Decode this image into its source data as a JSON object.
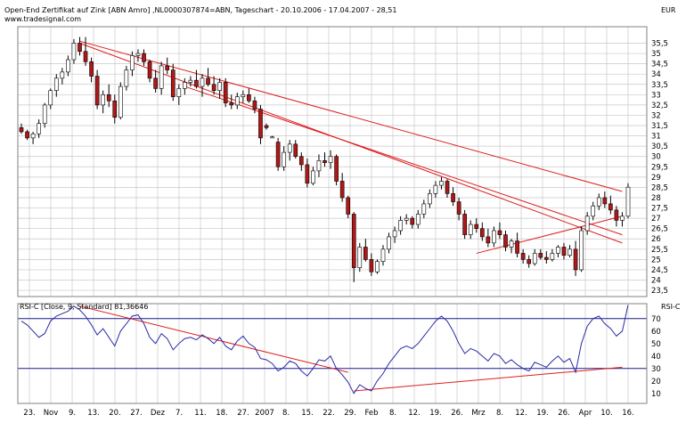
{
  "header": {
    "title": "Open-End Zertifikat auf Zink [ABN Amro] ,NL0000307874=ABN, Tageschart - 20.10.2006 - 17.04.2007 - 28,51",
    "source": "www.tradesignal.com",
    "currency": "EUR"
  },
  "colors": {
    "up": "#ffffff",
    "down": "#b01818",
    "trendline": "#dd1f1f",
    "rsi": "#2a2aa8",
    "rsi_ref": "#1a1a8c",
    "grid": "#c8c8c8"
  },
  "chart_data": [
    {
      "type": "candlestick",
      "title": "Open-End Zertifikat auf Zink [ABN Amro] ,NL0000307874=ABN, Tageschart - 20.10.2006 - 17.04.2007 - 28,51",
      "ylabel": "EUR",
      "ylim": [
        23.2,
        36.3
      ],
      "y_ticks": [
        "23,5",
        "24",
        "24,5",
        "25",
        "25,5",
        "26",
        "26,5",
        "27",
        "27,5",
        "28",
        "28,5",
        "29",
        "29,5",
        "30",
        "30,5",
        "31",
        "31,5",
        "32",
        "32,5",
        "33",
        "33,5",
        "34",
        "34,5",
        "35",
        "35,5"
      ],
      "x_tick_labels": [
        "23.",
        "Nov",
        "9.",
        "13.",
        "20.",
        "27.",
        "Dez",
        "7.",
        "11.",
        "18.",
        "27.",
        "2007",
        "8.",
        "15.",
        "22.",
        "29.",
        "Feb",
        "8.",
        "12.",
        "19.",
        "26.",
        "Mrz",
        "8.",
        "12.",
        "19.",
        "26.",
        "Apr",
        "10.",
        "16."
      ],
      "grid": true,
      "ohlc": [
        [
          31.4,
          31.6,
          31.1,
          31.2
        ],
        [
          31.2,
          31.3,
          30.8,
          30.9
        ],
        [
          30.9,
          31.2,
          30.6,
          31.1
        ],
        [
          31.1,
          31.8,
          30.9,
          31.6
        ],
        [
          31.6,
          32.6,
          31.4,
          32.5
        ],
        [
          32.5,
          33.3,
          32.3,
          33.2
        ],
        [
          33.2,
          34.0,
          32.9,
          33.8
        ],
        [
          33.8,
          34.3,
          33.5,
          34.1
        ],
        [
          34.1,
          34.9,
          33.9,
          34.7
        ],
        [
          34.7,
          35.7,
          34.5,
          35.5
        ],
        [
          35.5,
          35.8,
          34.9,
          35.1
        ],
        [
          35.1,
          35.8,
          34.4,
          34.6
        ],
        [
          34.6,
          34.8,
          33.6,
          33.9
        ],
        [
          33.9,
          34.2,
          32.3,
          32.5
        ],
        [
          32.5,
          33.2,
          32.1,
          33.0
        ],
        [
          33.0,
          33.5,
          32.4,
          32.7
        ],
        [
          32.7,
          33.0,
          31.6,
          31.9
        ],
        [
          31.9,
          33.6,
          31.8,
          33.4
        ],
        [
          33.4,
          34.4,
          33.2,
          34.2
        ],
        [
          34.2,
          35.1,
          33.9,
          34.9
        ],
        [
          34.9,
          35.2,
          34.6,
          35.0
        ],
        [
          35.0,
          35.2,
          34.4,
          34.6
        ],
        [
          34.6,
          34.7,
          33.6,
          33.8
        ],
        [
          33.8,
          34.2,
          33.1,
          33.3
        ],
        [
          33.3,
          34.6,
          33.0,
          34.4
        ],
        [
          34.4,
          34.8,
          34.0,
          34.2
        ],
        [
          34.2,
          34.5,
          32.7,
          32.9
        ],
        [
          32.9,
          33.5,
          32.5,
          33.3
        ],
        [
          33.3,
          33.8,
          33.0,
          33.6
        ],
        [
          33.6,
          33.9,
          33.4,
          33.7
        ],
        [
          33.7,
          34.2,
          33.3,
          33.4
        ],
        [
          33.4,
          34.0,
          32.9,
          33.8
        ],
        [
          33.8,
          34.3,
          33.4,
          33.5
        ],
        [
          33.5,
          33.9,
          33.0,
          33.2
        ],
        [
          33.2,
          33.8,
          32.8,
          33.6
        ],
        [
          33.6,
          33.8,
          32.4,
          32.6
        ],
        [
          32.6,
          33.0,
          32.3,
          32.5
        ],
        [
          32.5,
          33.1,
          32.3,
          32.9
        ],
        [
          32.9,
          33.2,
          32.6,
          33.0
        ],
        [
          33.0,
          33.3,
          32.6,
          32.7
        ],
        [
          32.7,
          32.9,
          32.1,
          32.3
        ],
        [
          32.3,
          32.5,
          30.6,
          30.9
        ],
        [
          31.5,
          31.6,
          31.3,
          31.4
        ],
        [
          30.9,
          31.0,
          30.9,
          30.95
        ],
        [
          30.7,
          30.9,
          29.3,
          29.5
        ],
        [
          29.5,
          30.5,
          29.3,
          30.2
        ],
        [
          30.2,
          30.8,
          29.8,
          30.6
        ],
        [
          30.6,
          30.8,
          29.9,
          30.0
        ],
        [
          30.0,
          30.2,
          29.3,
          29.6
        ],
        [
          29.6,
          29.9,
          28.5,
          28.7
        ],
        [
          28.7,
          29.5,
          28.6,
          29.3
        ],
        [
          29.3,
          30.1,
          29.0,
          29.8
        ],
        [
          29.8,
          30.2,
          29.5,
          29.7
        ],
        [
          29.7,
          30.3,
          29.4,
          30.0
        ],
        [
          30.0,
          30.1,
          28.6,
          28.8
        ],
        [
          28.8,
          29.2,
          27.8,
          28.0
        ],
        [
          28.0,
          28.1,
          27.0,
          27.2
        ],
        [
          27.2,
          27.3,
          23.9,
          24.6
        ],
        [
          24.6,
          25.8,
          24.4,
          25.6
        ],
        [
          25.6,
          26.0,
          24.9,
          25.0
        ],
        [
          25.0,
          25.3,
          24.2,
          24.4
        ],
        [
          24.4,
          25.0,
          24.3,
          24.9
        ],
        [
          24.9,
          25.7,
          24.7,
          25.5
        ],
        [
          25.5,
          26.3,
          25.3,
          26.1
        ],
        [
          26.1,
          26.6,
          25.8,
          26.4
        ],
        [
          26.4,
          27.1,
          26.2,
          26.9
        ],
        [
          26.9,
          27.2,
          26.7,
          27.0
        ],
        [
          27.0,
          27.1,
          26.5,
          26.7
        ],
        [
          26.7,
          27.4,
          26.5,
          27.2
        ],
        [
          27.2,
          27.9,
          27.0,
          27.7
        ],
        [
          27.7,
          28.4,
          27.5,
          28.2
        ],
        [
          28.2,
          28.8,
          28.0,
          28.6
        ],
        [
          28.6,
          29.0,
          28.4,
          28.8
        ],
        [
          28.8,
          28.9,
          28.0,
          28.2
        ],
        [
          28.2,
          28.5,
          27.6,
          27.8
        ],
        [
          27.8,
          28.0,
          26.9,
          27.2
        ],
        [
          27.2,
          27.4,
          26.0,
          26.2
        ],
        [
          26.2,
          26.9,
          26.0,
          26.7
        ],
        [
          26.7,
          27.0,
          26.3,
          26.5
        ],
        [
          26.5,
          26.8,
          25.9,
          26.1
        ],
        [
          26.1,
          26.5,
          25.6,
          25.8
        ],
        [
          25.8,
          26.6,
          25.6,
          26.4
        ],
        [
          26.4,
          26.8,
          26.0,
          26.2
        ],
        [
          26.2,
          26.4,
          25.4,
          25.6
        ],
        [
          25.6,
          26.0,
          25.3,
          25.9
        ],
        [
          25.9,
          26.3,
          25.1,
          25.3
        ],
        [
          25.3,
          25.5,
          24.8,
          25.0
        ],
        [
          25.0,
          25.2,
          24.6,
          24.8
        ],
        [
          24.8,
          25.5,
          24.7,
          25.3
        ],
        [
          25.3,
          25.5,
          25.0,
          25.1
        ],
        [
          25.1,
          25.4,
          24.8,
          25.0
        ],
        [
          25.0,
          25.5,
          24.9,
          25.3
        ],
        [
          25.3,
          25.7,
          25.1,
          25.6
        ],
        [
          25.6,
          25.8,
          25.0,
          25.2
        ],
        [
          25.2,
          25.7,
          25.1,
          25.5
        ],
        [
          25.5,
          25.9,
          24.2,
          24.5
        ],
        [
          24.5,
          26.6,
          24.4,
          26.4
        ],
        [
          26.4,
          27.3,
          26.2,
          27.1
        ],
        [
          27.1,
          27.8,
          26.9,
          27.6
        ],
        [
          27.6,
          28.2,
          27.4,
          28.0
        ],
        [
          28.0,
          28.3,
          27.5,
          27.7
        ],
        [
          27.7,
          28.1,
          27.2,
          27.4
        ],
        [
          27.4,
          27.6,
          26.6,
          26.9
        ],
        [
          26.9,
          27.3,
          26.6,
          27.1
        ],
        [
          27.1,
          28.7,
          27.0,
          28.51
        ]
      ],
      "trendlines": [
        [
          [
            10,
            35.6
          ],
          [
            103,
            28.3
          ]
        ],
        [
          [
            10,
            35.5
          ],
          [
            103,
            25.8
          ]
        ],
        [
          [
            28,
            33.4
          ],
          [
            103,
            26.2
          ]
        ],
        [
          [
            78,
            25.3
          ],
          [
            103,
            27.1
          ]
        ]
      ]
    },
    {
      "type": "line",
      "title": "RSI-C [Close, 9, Standard] 81,36646",
      "ylabel": "RSI-C",
      "ylim": [
        2,
        82
      ],
      "y_ticks": [
        "10",
        "20",
        "30",
        "40",
        "50",
        "60",
        "70"
      ],
      "reference_lines": [
        30,
        70
      ],
      "series": [
        {
          "values": [
            68,
            65,
            60,
            55,
            58,
            68,
            72,
            74,
            76,
            80,
            77,
            72,
            65,
            57,
            62,
            55,
            48,
            60,
            66,
            72,
            73,
            66,
            55,
            50,
            58,
            54,
            45,
            50,
            54,
            55,
            53,
            57,
            54,
            50,
            55,
            48,
            45,
            52,
            56,
            50,
            47,
            38,
            37,
            34,
            28,
            31,
            36,
            34,
            28,
            24,
            30,
            37,
            36,
            40,
            30,
            25,
            19,
            10,
            17,
            14,
            12,
            20,
            26,
            34,
            40,
            46,
            48,
            46,
            50,
            56,
            62,
            68,
            72,
            68,
            60,
            50,
            42,
            46,
            44,
            40,
            36,
            42,
            40,
            34,
            37,
            33,
            30,
            28,
            35,
            33,
            31,
            36,
            40,
            35,
            38,
            27,
            50,
            64,
            70,
            72,
            66,
            62,
            56,
            60,
            81
          ]
        }
      ],
      "trendlines": [
        [
          [
            10,
            80
          ],
          [
            56,
            27
          ]
        ],
        [
          [
            57,
            12
          ],
          [
            103,
            31
          ]
        ]
      ]
    }
  ]
}
